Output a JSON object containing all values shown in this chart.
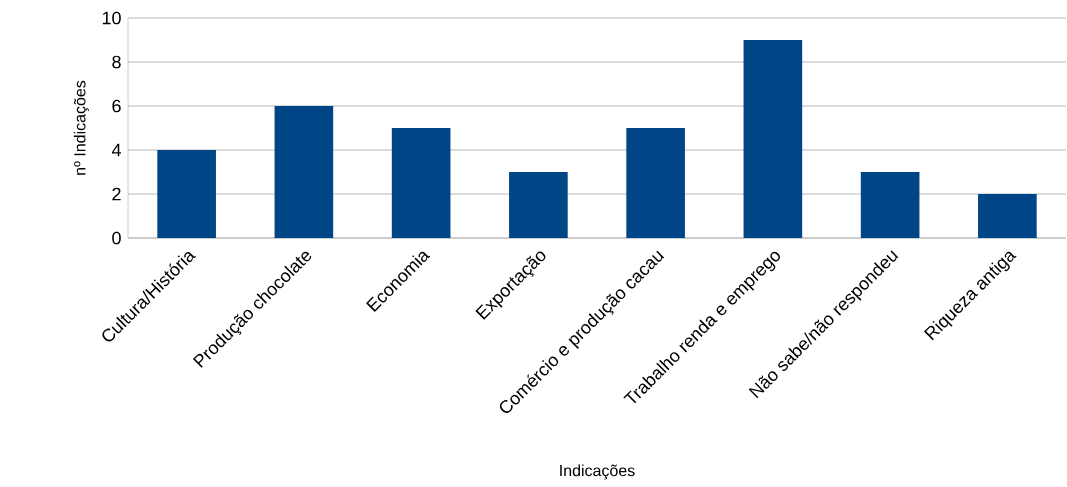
{
  "chart_data": {
    "type": "bar",
    "xlabel": "Indicações",
    "ylabel": "nº Indicações",
    "categories": [
      "Cultura/História",
      "Produção chocolate",
      "Economia",
      "Exportação",
      "Comércio e produção cacau",
      "Trabalho renda e emprego",
      "Não sabe/não respondeu",
      "Riqueza antiga"
    ],
    "values": [
      4,
      6,
      5,
      3,
      5,
      9,
      3,
      2
    ],
    "color": "#004586",
    "ylim": [
      0,
      10
    ],
    "yticks": [
      0,
      2,
      4,
      6,
      8,
      10
    ],
    "grid": "y"
  }
}
